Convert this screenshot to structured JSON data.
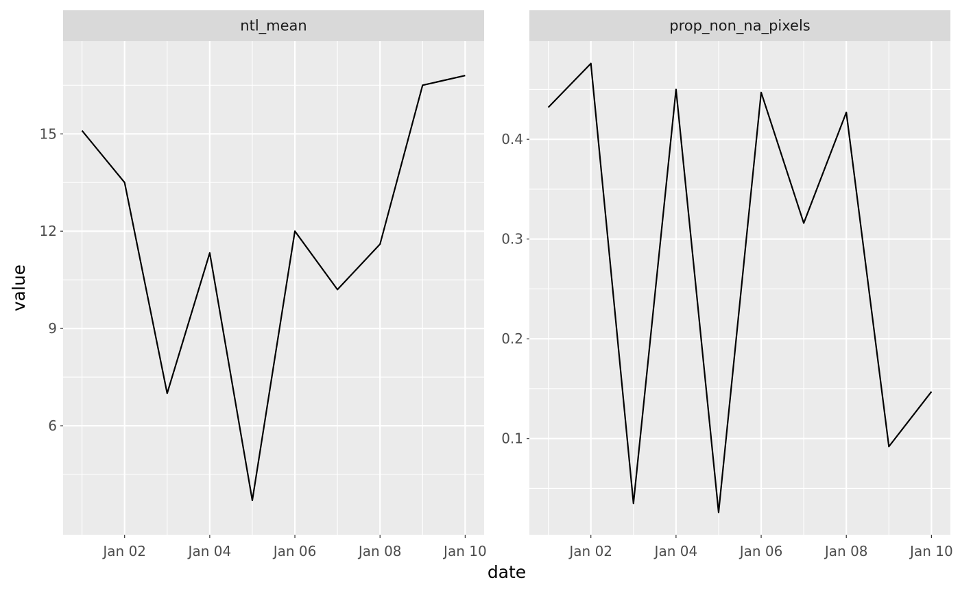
{
  "chart_data": {
    "type": "line",
    "layout": "faceted",
    "xlabel": "date",
    "ylabel": "value",
    "x": [
      "2023-01-01",
      "2023-01-02",
      "2023-01-03",
      "2023-01-04",
      "2023-01-05",
      "2023-01-06",
      "2023-01-07",
      "2023-01-08",
      "2023-01-09",
      "2023-01-10"
    ],
    "xticks": [
      "2023-01-02",
      "2023-01-04",
      "2023-01-06",
      "2023-01-08",
      "2023-01-10"
    ],
    "xtick_labels": [
      "Jan 02",
      "Jan 04",
      "Jan 06",
      "Jan 08",
      "Jan 10"
    ],
    "xlim": [
      "2023-01-01",
      "2023-01-10"
    ],
    "line_color": "#000000",
    "panel_background": "#ebebeb",
    "strip_background": "#d9d9d9",
    "grid_color": "#ffffff",
    "grid": true,
    "legend": "none",
    "facets": [
      {
        "title": "ntl_mean",
        "values": [
          15.1,
          13.5,
          7.0,
          11.33,
          3.7,
          12.0,
          10.2,
          11.6,
          16.5,
          16.8
        ],
        "ylim": [
          2.64,
          17.86
        ],
        "yticks": [
          6,
          9,
          12,
          15
        ],
        "ytick_labels": [
          "6",
          "9",
          "12",
          "15"
        ]
      },
      {
        "title": "prop_non_na_pixels",
        "values": [
          0.432,
          0.476,
          0.035,
          0.45,
          0.026,
          0.447,
          0.316,
          0.427,
          0.092,
          0.147
        ],
        "ylim": [
          0.0036,
          0.4984
        ],
        "yticks": [
          0.1,
          0.2,
          0.3,
          0.4
        ],
        "ytick_labels": [
          "0.1",
          "0.2",
          "0.3",
          "0.4"
        ]
      }
    ]
  }
}
